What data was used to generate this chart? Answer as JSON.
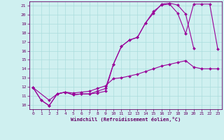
{
  "xlabel": "Windchill (Refroidissement éolien,°C)",
  "background_color": "#cff0f0",
  "grid_color": "#aadddd",
  "line_color": "#990099",
  "xlim": [
    -0.5,
    23.5
  ],
  "ylim": [
    9.5,
    21.5
  ],
  "xticks": [
    0,
    1,
    2,
    3,
    4,
    5,
    6,
    7,
    8,
    9,
    10,
    11,
    12,
    13,
    14,
    15,
    16,
    17,
    18,
    19,
    20,
    21,
    22,
    23
  ],
  "yticks": [
    10,
    11,
    12,
    13,
    14,
    15,
    16,
    17,
    18,
    19,
    20,
    21
  ],
  "s1_x": [
    0,
    1,
    2,
    3,
    4,
    5,
    6,
    7,
    8,
    9,
    10,
    11,
    12,
    13,
    14,
    15,
    16,
    17,
    18,
    19,
    20
  ],
  "s1_y": [
    11.9,
    10.5,
    9.9,
    11.2,
    11.4,
    11.1,
    11.2,
    11.2,
    11.5,
    11.8,
    14.5,
    16.5,
    17.2,
    17.5,
    19.1,
    20.2,
    21.2,
    21.3,
    21.1,
    20.1,
    16.3
  ],
  "s2_x": [
    0,
    1,
    2,
    3,
    4,
    5,
    6,
    7,
    8,
    9,
    10,
    11,
    12,
    13,
    14,
    15,
    16,
    17,
    18,
    19,
    20,
    21,
    22,
    23
  ],
  "s2_y": [
    11.9,
    10.5,
    9.9,
    11.2,
    11.4,
    11.3,
    11.4,
    11.5,
    11.8,
    12.1,
    12.9,
    13.0,
    13.2,
    13.4,
    13.7,
    14.0,
    14.3,
    14.5,
    14.7,
    14.9,
    14.2,
    14.0,
    14.0,
    14.0
  ],
  "s3_x": [
    0,
    2,
    3,
    4,
    5,
    6,
    7,
    8,
    9,
    10,
    11,
    12,
    13,
    14,
    15,
    16,
    17,
    18,
    19,
    20,
    21,
    22,
    23
  ],
  "s3_y": [
    11.9,
    10.5,
    11.2,
    11.4,
    11.1,
    11.2,
    11.2,
    11.3,
    11.5,
    14.5,
    16.5,
    17.2,
    17.5,
    19.1,
    20.4,
    21.1,
    21.2,
    20.2,
    17.9,
    21.2,
    21.2,
    21.2,
    16.2
  ],
  "tick_color": "#660066",
  "tick_fontsize": 4.5,
  "xlabel_fontsize": 5.0,
  "marker_size": 2.0,
  "linewidth": 0.8
}
